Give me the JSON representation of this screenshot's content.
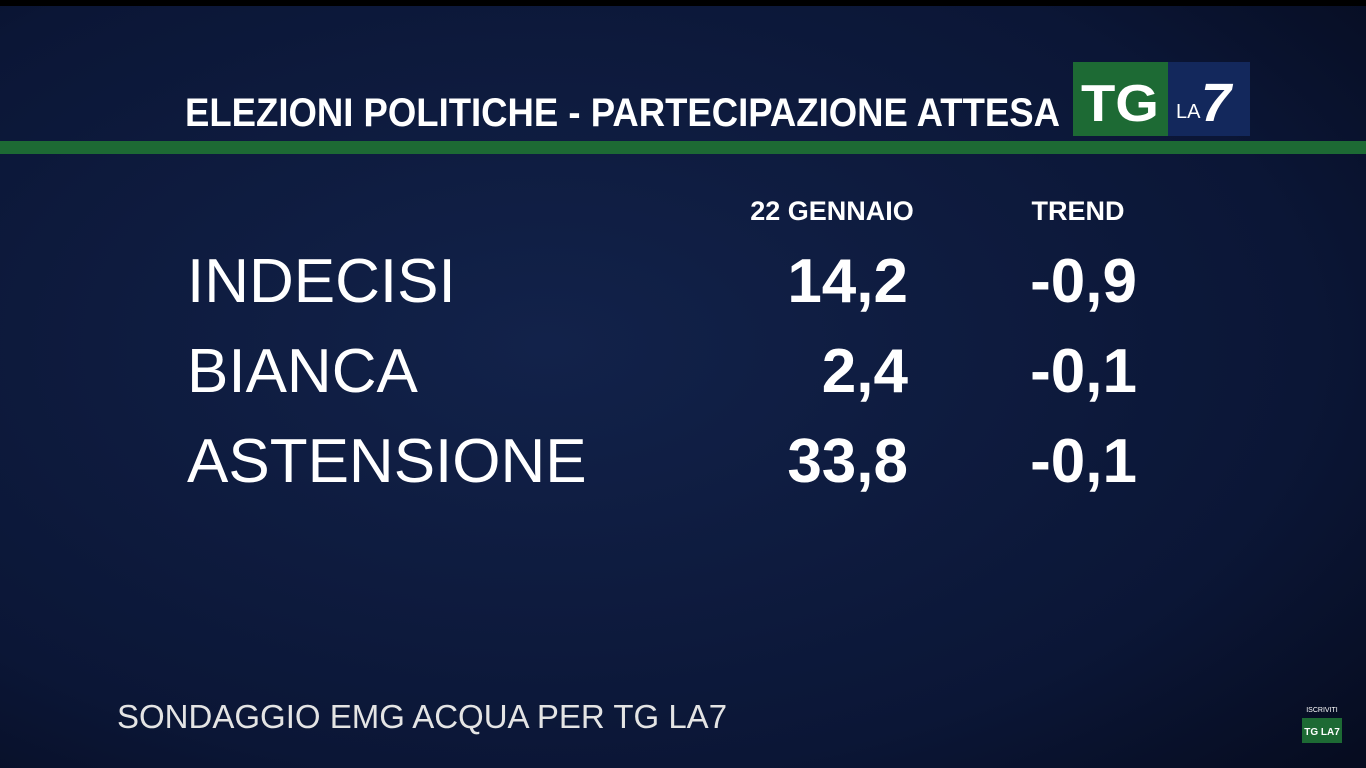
{
  "header": {
    "title": "ELEZIONI POLITICHE - PARTECIPAZIONE ATTESA",
    "logo": {
      "tg": "TG",
      "la": "LA",
      "seven": "7"
    }
  },
  "table": {
    "columns": [
      "22 GENNAIO",
      "TREND"
    ],
    "rows": [
      [
        "INDECISI",
        "14,2",
        "-0,9"
      ],
      [
        "BIANCA",
        "2,4",
        "-0,1"
      ],
      [
        "ASTENSIONE",
        "33,8",
        "-0,1"
      ]
    ]
  },
  "footer": "SONDAGGIO EMG ACQUA PER TG LA7",
  "watermark": {
    "text": "ISCRIVITI",
    "logo": "TG LA7"
  }
}
